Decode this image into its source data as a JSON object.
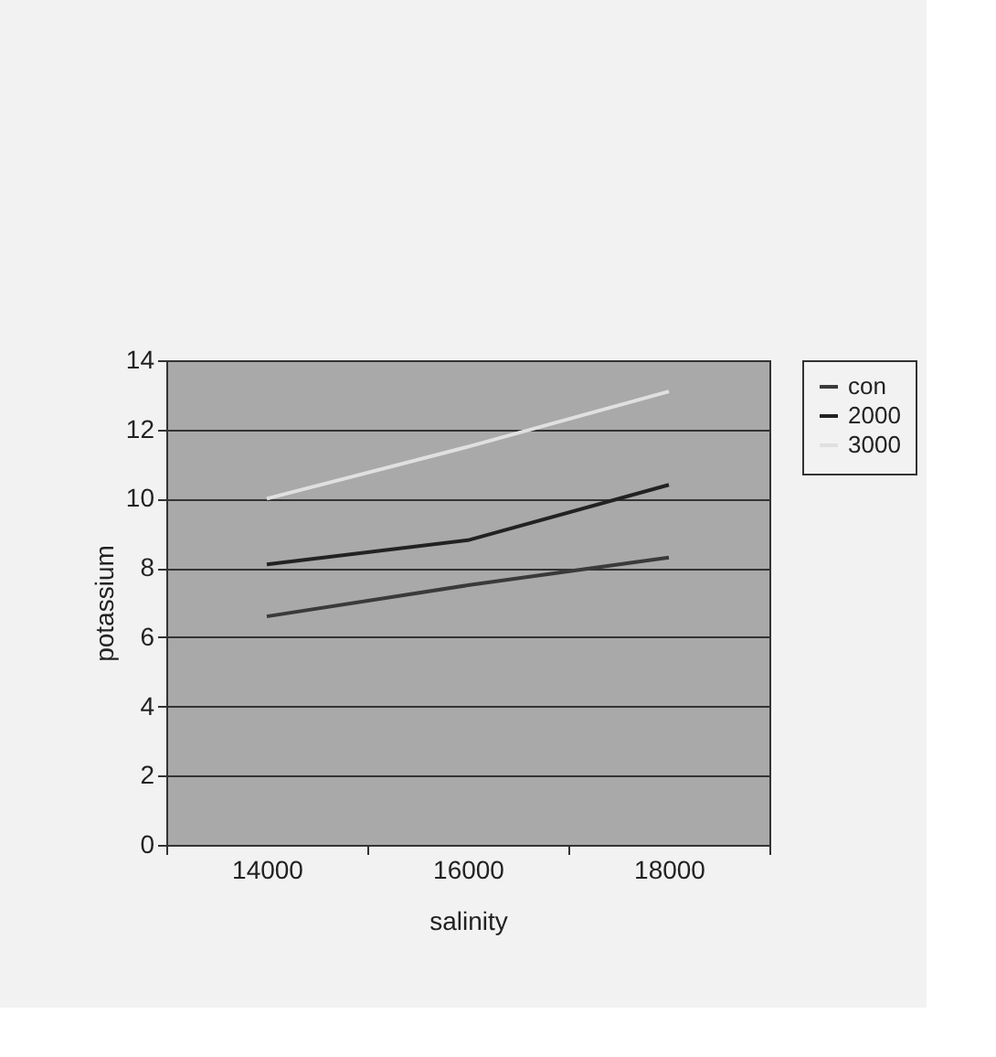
{
  "chart_data": {
    "type": "line",
    "xlabel": "salinity",
    "ylabel": "potassium",
    "categories": [
      "14000",
      "16000",
      "18000"
    ],
    "series": [
      {
        "name": "con",
        "color": "#3a3a3a",
        "values": [
          6.6,
          7.5,
          8.3
        ]
      },
      {
        "name": "2000",
        "color": "#222222",
        "values": [
          8.1,
          8.8,
          10.4
        ]
      },
      {
        "name": "3000",
        "color": "#e0e0e0",
        "values": [
          10.0,
          11.5,
          13.1
        ]
      }
    ],
    "ylim": [
      0,
      14
    ],
    "yticks": [
      0,
      2,
      4,
      6,
      8,
      10,
      12,
      14
    ],
    "grid": "y",
    "legend": "right",
    "marker": "none",
    "line_style": "solid"
  }
}
